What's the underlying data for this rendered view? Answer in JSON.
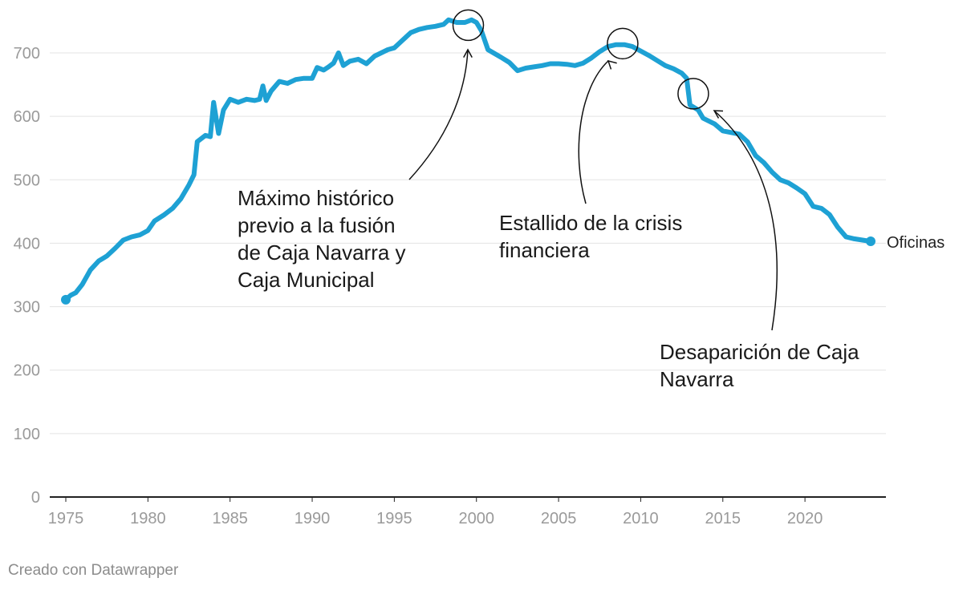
{
  "chart_data": {
    "type": "line",
    "title": "",
    "xlabel": "",
    "ylabel": "",
    "xlim": [
      1975,
      2024
    ],
    "ylim": [
      0,
      760
    ],
    "grid": true,
    "x_ticks": [
      "1975",
      "1980",
      "1985",
      "1990",
      "1995",
      "2000",
      "2005",
      "2010",
      "2015",
      "2020"
    ],
    "y_ticks": [
      "0",
      "100",
      "200",
      "300",
      "400",
      "500",
      "600",
      "700"
    ],
    "series": [
      {
        "name": "Oficinas",
        "color": "#1ea1d4",
        "points": [
          [
            1975.0,
            311
          ],
          [
            1975.3,
            318
          ],
          [
            1975.6,
            322
          ],
          [
            1976.0,
            335
          ],
          [
            1976.5,
            358
          ],
          [
            1977.0,
            372
          ],
          [
            1977.5,
            380
          ],
          [
            1978.0,
            392
          ],
          [
            1978.5,
            405
          ],
          [
            1979.0,
            410
          ],
          [
            1979.5,
            413
          ],
          [
            1980.0,
            420
          ],
          [
            1980.4,
            435
          ],
          [
            1981.0,
            445
          ],
          [
            1981.5,
            455
          ],
          [
            1982.0,
            470
          ],
          [
            1982.5,
            492
          ],
          [
            1982.8,
            508
          ],
          [
            1983.0,
            560
          ],
          [
            1983.5,
            570
          ],
          [
            1983.8,
            568
          ],
          [
            1984.0,
            622
          ],
          [
            1984.3,
            573
          ],
          [
            1984.6,
            610
          ],
          [
            1985.0,
            627
          ],
          [
            1985.5,
            622
          ],
          [
            1986.0,
            627
          ],
          [
            1986.5,
            625
          ],
          [
            1986.8,
            627
          ],
          [
            1987.0,
            648
          ],
          [
            1987.2,
            625
          ],
          [
            1987.5,
            640
          ],
          [
            1988.0,
            655
          ],
          [
            1988.5,
            652
          ],
          [
            1989.0,
            658
          ],
          [
            1989.5,
            660
          ],
          [
            1990.0,
            660
          ],
          [
            1990.3,
            677
          ],
          [
            1990.7,
            673
          ],
          [
            1991.0,
            678
          ],
          [
            1991.3,
            684
          ],
          [
            1991.6,
            700
          ],
          [
            1991.9,
            680
          ],
          [
            1992.3,
            687
          ],
          [
            1992.8,
            690
          ],
          [
            1993.3,
            683
          ],
          [
            1993.8,
            695
          ],
          [
            1994.2,
            700
          ],
          [
            1994.6,
            705
          ],
          [
            1995.0,
            708
          ],
          [
            1995.5,
            720
          ],
          [
            1996.0,
            732
          ],
          [
            1996.5,
            737
          ],
          [
            1997.0,
            740
          ],
          [
            1997.5,
            742
          ],
          [
            1998.0,
            745
          ],
          [
            1998.3,
            752
          ],
          [
            1998.8,
            748
          ],
          [
            1999.3,
            748
          ],
          [
            1999.7,
            752
          ],
          [
            2000.0,
            748
          ],
          [
            2000.3,
            735
          ],
          [
            2000.7,
            705
          ],
          [
            2001.5,
            693
          ],
          [
            2002.0,
            685
          ],
          [
            2002.5,
            672
          ],
          [
            2003.0,
            676
          ],
          [
            2003.5,
            678
          ],
          [
            2004.0,
            680
          ],
          [
            2004.5,
            683
          ],
          [
            2005.0,
            683
          ],
          [
            2005.5,
            682
          ],
          [
            2006.0,
            680
          ],
          [
            2006.5,
            684
          ],
          [
            2007.0,
            692
          ],
          [
            2007.5,
            702
          ],
          [
            2008.0,
            710
          ],
          [
            2008.5,
            713
          ],
          [
            2009.0,
            713
          ],
          [
            2009.5,
            710
          ],
          [
            2010.0,
            703
          ],
          [
            2010.5,
            696
          ],
          [
            2011.0,
            688
          ],
          [
            2011.5,
            680
          ],
          [
            2012.0,
            675
          ],
          [
            2012.5,
            668
          ],
          [
            2012.8,
            660
          ],
          [
            2013.0,
            618
          ],
          [
            2013.5,
            610
          ],
          [
            2013.8,
            597
          ],
          [
            2014.5,
            588
          ],
          [
            2015.0,
            577
          ],
          [
            2016.0,
            572
          ],
          [
            2016.5,
            560
          ],
          [
            2017.0,
            538
          ],
          [
            2017.5,
            527
          ],
          [
            2018.0,
            512
          ],
          [
            2018.5,
            500
          ],
          [
            2019.0,
            495
          ],
          [
            2019.5,
            487
          ],
          [
            2020.0,
            478
          ],
          [
            2020.5,
            458
          ],
          [
            2021.0,
            455
          ],
          [
            2021.5,
            445
          ],
          [
            2022.0,
            425
          ],
          [
            2022.5,
            410
          ],
          [
            2023.0,
            407
          ],
          [
            2023.5,
            405
          ],
          [
            2024.0,
            403
          ]
        ],
        "end_label": "Oficinas"
      }
    ],
    "annotations": [
      {
        "lines": [
          "Máximo histórico",
          "previo a la fusión",
          "de Caja Navarra y",
          "Caja Municipal"
        ],
        "circle_at": [
          1999.5,
          745
        ]
      },
      {
        "lines": [
          "Estallido de la crisis",
          "financiera"
        ],
        "circle_at": [
          2008.9,
          716
        ]
      },
      {
        "lines": [
          "Desaparición de Caja",
          "Navarra"
        ],
        "circle_at": [
          2013.2,
          637
        ]
      }
    ]
  },
  "footer": {
    "credit": "Creado con Datawrapper"
  }
}
